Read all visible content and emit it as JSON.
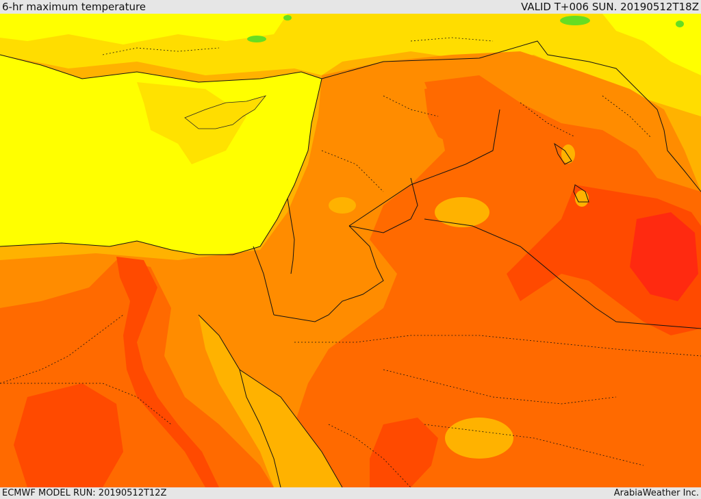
{
  "header": {
    "title": "6-hr maximum temperature",
    "valid": "VALID T+006 SUN. 20190512T18Z"
  },
  "footer": {
    "model_run": "ECMWF MODEL RUN: 20190512T12Z",
    "credit": "ArabiaWeather Inc."
  },
  "map": {
    "palette": {
      "sea_yellow": "#ffff00",
      "light_orange": "#ffdd00",
      "orange": "#ffb200",
      "dark_orange": "#ff8c00",
      "red_orange": "#ff6a00",
      "red": "#ff4a00",
      "deep_red": "#ff2a10",
      "green": "#66dd22"
    }
  }
}
